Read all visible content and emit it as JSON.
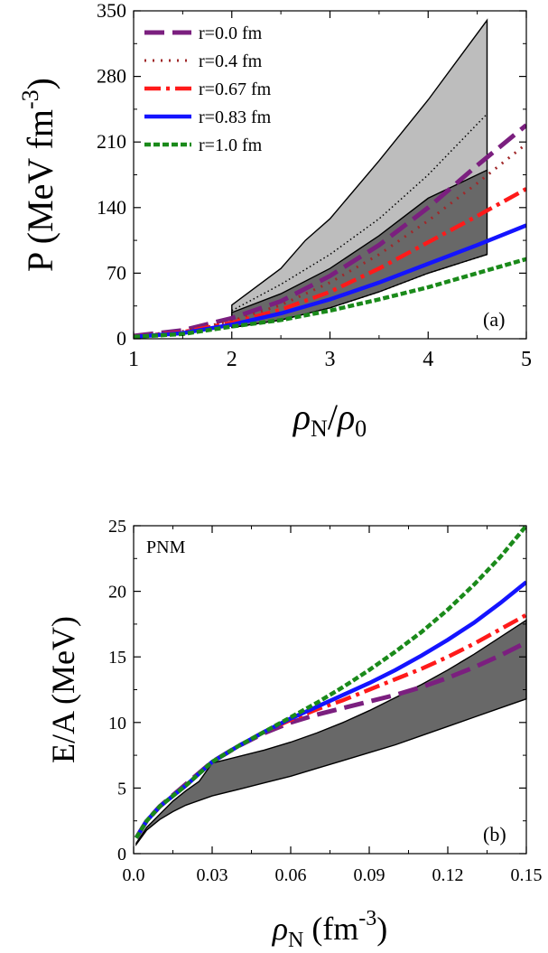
{
  "colors": {
    "r00": "#7b1f7f",
    "r04": "#a0282a",
    "r067": "#ff1a1a",
    "r083": "#1414ff",
    "r10": "#1a8a1a",
    "band_light": "#bdbdbd",
    "band_dark": "#686868"
  },
  "chart_data": [
    {
      "type": "line",
      "panel_label": "(a)",
      "xlabel": "ρN/ρ0",
      "ylabel": "P (MeV fm-3)",
      "xlim": [
        1,
        5
      ],
      "ylim": [
        0,
        350
      ],
      "xticks": [
        "1",
        "2",
        "3",
        "4",
        "5"
      ],
      "yticks": [
        "0",
        "70",
        "140",
        "210",
        "280",
        "350"
      ],
      "legend_position": "top-left",
      "series": [
        {
          "name": "r=0.0 fm",
          "style": "dashed",
          "color_key": "r00",
          "x": [
            1,
            1.5,
            2,
            2.5,
            3,
            3.5,
            4,
            4.5,
            5
          ],
          "y": [
            3,
            9,
            22,
            40,
            67,
            100,
            140,
            185,
            228
          ]
        },
        {
          "name": "r=0.4 fm",
          "style": "dotted",
          "color_key": "r04",
          "x": [
            1,
            1.5,
            2,
            2.5,
            3,
            3.5,
            4,
            4.5,
            5
          ],
          "y": [
            3,
            8,
            19,
            36,
            60,
            90,
            126,
            166,
            208
          ]
        },
        {
          "name": "r=0.67 fm",
          "style": "dashdot",
          "color_key": "r067",
          "x": [
            1,
            1.5,
            2,
            2.5,
            3,
            3.5,
            4,
            4.5,
            5
          ],
          "y": [
            2,
            7,
            17,
            31,
            50,
            75,
            103,
            131,
            160
          ]
        },
        {
          "name": "r=0.83 fm",
          "style": "solid",
          "color_key": "r083",
          "x": [
            1,
            1.5,
            2,
            2.5,
            3,
            3.5,
            4,
            4.5,
            5
          ],
          "y": [
            2,
            6,
            15,
            27,
            42,
            60,
            80,
            100,
            121
          ]
        },
        {
          "name": "r=1.0 fm",
          "style": "short-dashed",
          "color_key": "r10",
          "x": [
            1,
            1.5,
            2,
            2.5,
            3,
            3.5,
            4,
            4.5,
            5
          ],
          "y": [
            2,
            5,
            13,
            20,
            30,
            42,
            55,
            70,
            85
          ]
        }
      ],
      "bands": [
        {
          "fill_key": "band_light",
          "upper": {
            "x": [
              2,
              2.5,
              2.75,
              3,
              3.5,
              4,
              4.6
            ],
            "y": [
              36,
              75,
              105,
              128,
              190,
              255,
              340
            ]
          },
          "lower": {
            "x": [
              2,
              2.5,
              3,
              3.5,
              4,
              4.6
            ],
            "y": [
              20,
              34,
              55,
              80,
              110,
              140
            ]
          }
        },
        {
          "fill_key": "band_dark",
          "upper": {
            "x": [
              2,
              2.5,
              3,
              3.5,
              4,
              4.6
            ],
            "y": [
              28,
              48,
              75,
              110,
              150,
              180
            ]
          },
          "lower": {
            "x": [
              2,
              2.5,
              3,
              3.5,
              4,
              4.6
            ],
            "y": [
              12,
              20,
              33,
              50,
              70,
              90
            ]
          }
        }
      ],
      "extra_lines": [
        {
          "style": "dotted-black",
          "x": [
            2,
            2.5,
            3,
            3.5,
            4,
            4.6
          ],
          "y": [
            30,
            58,
            90,
            128,
            175,
            240
          ]
        },
        {
          "style": "dotted-black",
          "x": [
            2,
            2.5,
            3,
            3.5,
            4,
            4.6
          ],
          "y": [
            12,
            20,
            33,
            50,
            70,
            90
          ]
        }
      ]
    },
    {
      "type": "line",
      "panel_label": "(b)",
      "annotation": "PNM",
      "xlabel": "ρN (fm-3)",
      "ylabel": "E/A (MeV)",
      "xlim": [
        0,
        0.15
      ],
      "ylim": [
        0,
        25
      ],
      "xticks": [
        "0.0",
        "0.03",
        "0.06",
        "0.09",
        "0.12",
        "0.15"
      ],
      "yticks": [
        "0",
        "5",
        "10",
        "15",
        "20",
        "25"
      ],
      "series": [
        {
          "name": "r=0.0 fm",
          "style": "dashed",
          "color_key": "r00",
          "x": [
            0.001,
            0.005,
            0.01,
            0.02,
            0.03,
            0.04,
            0.05,
            0.06,
            0.07,
            0.08,
            0.09,
            0.1,
            0.11,
            0.12,
            0.13,
            0.14,
            0.15
          ],
          "y": [
            1.2,
            2.5,
            3.6,
            5.3,
            7.0,
            8.2,
            9.2,
            10.0,
            10.6,
            11.1,
            11.6,
            12.1,
            12.7,
            13.4,
            14.2,
            15.1,
            16.1
          ]
        },
        {
          "name": "r=0.67 fm",
          "style": "dashdot",
          "color_key": "r067",
          "x": [
            0.001,
            0.005,
            0.01,
            0.02,
            0.03,
            0.04,
            0.05,
            0.06,
            0.07,
            0.08,
            0.09,
            0.1,
            0.11,
            0.12,
            0.13,
            0.14,
            0.15
          ],
          "y": [
            1.2,
            2.5,
            3.6,
            5.2,
            7.0,
            8.2,
            9.3,
            10.2,
            11.0,
            11.7,
            12.5,
            13.3,
            14.1,
            15.0,
            16.0,
            17.1,
            18.2
          ]
        },
        {
          "name": "r=0.83 fm",
          "style": "solid",
          "color_key": "r083",
          "x": [
            0.001,
            0.005,
            0.01,
            0.02,
            0.03,
            0.04,
            0.05,
            0.06,
            0.07,
            0.08,
            0.09,
            0.1,
            0.11,
            0.12,
            0.13,
            0.14,
            0.15
          ],
          "y": [
            1.2,
            2.5,
            3.6,
            5.2,
            7.0,
            8.2,
            9.3,
            10.3,
            11.2,
            12.1,
            13.0,
            14.0,
            15.1,
            16.3,
            17.6,
            19.1,
            20.7
          ]
        },
        {
          "name": "r=1.0 fm",
          "style": "short-dashed",
          "color_key": "r10",
          "x": [
            0.001,
            0.005,
            0.01,
            0.02,
            0.03,
            0.04,
            0.05,
            0.06,
            0.07,
            0.08,
            0.09,
            0.1,
            0.11,
            0.12,
            0.13,
            0.14,
            0.15
          ],
          "y": [
            1.2,
            2.5,
            3.6,
            5.2,
            7.0,
            8.2,
            9.3,
            10.4,
            11.5,
            12.7,
            14.0,
            15.4,
            16.9,
            18.6,
            20.5,
            22.6,
            25.0
          ]
        }
      ],
      "bands": [
        {
          "fill_key": "band_dark",
          "upper": {
            "x": [
              0.001,
              0.005,
              0.01,
              0.015,
              0.02,
              0.025,
              0.03,
              0.04,
              0.05,
              0.06,
              0.07,
              0.08,
              0.09,
              0.1,
              0.11,
              0.12,
              0.13,
              0.14,
              0.15
            ],
            "y": [
              0.8,
              2.0,
              3.0,
              4.0,
              4.8,
              5.5,
              6.9,
              7.4,
              7.9,
              8.5,
              9.2,
              10.0,
              10.9,
              11.9,
              12.9,
              14.0,
              15.2,
              16.5,
              17.8
            ]
          },
          "lower": {
            "x": [
              0.001,
              0.005,
              0.01,
              0.015,
              0.02,
              0.03,
              0.04,
              0.05,
              0.06,
              0.07,
              0.08,
              0.09,
              0.1,
              0.11,
              0.12,
              0.13,
              0.14,
              0.15
            ],
            "y": [
              0.7,
              1.8,
              2.6,
              3.2,
              3.7,
              4.4,
              4.9,
              5.4,
              5.9,
              6.5,
              7.1,
              7.7,
              8.3,
              9.0,
              9.7,
              10.4,
              11.1,
              11.8
            ]
          }
        }
      ]
    }
  ]
}
